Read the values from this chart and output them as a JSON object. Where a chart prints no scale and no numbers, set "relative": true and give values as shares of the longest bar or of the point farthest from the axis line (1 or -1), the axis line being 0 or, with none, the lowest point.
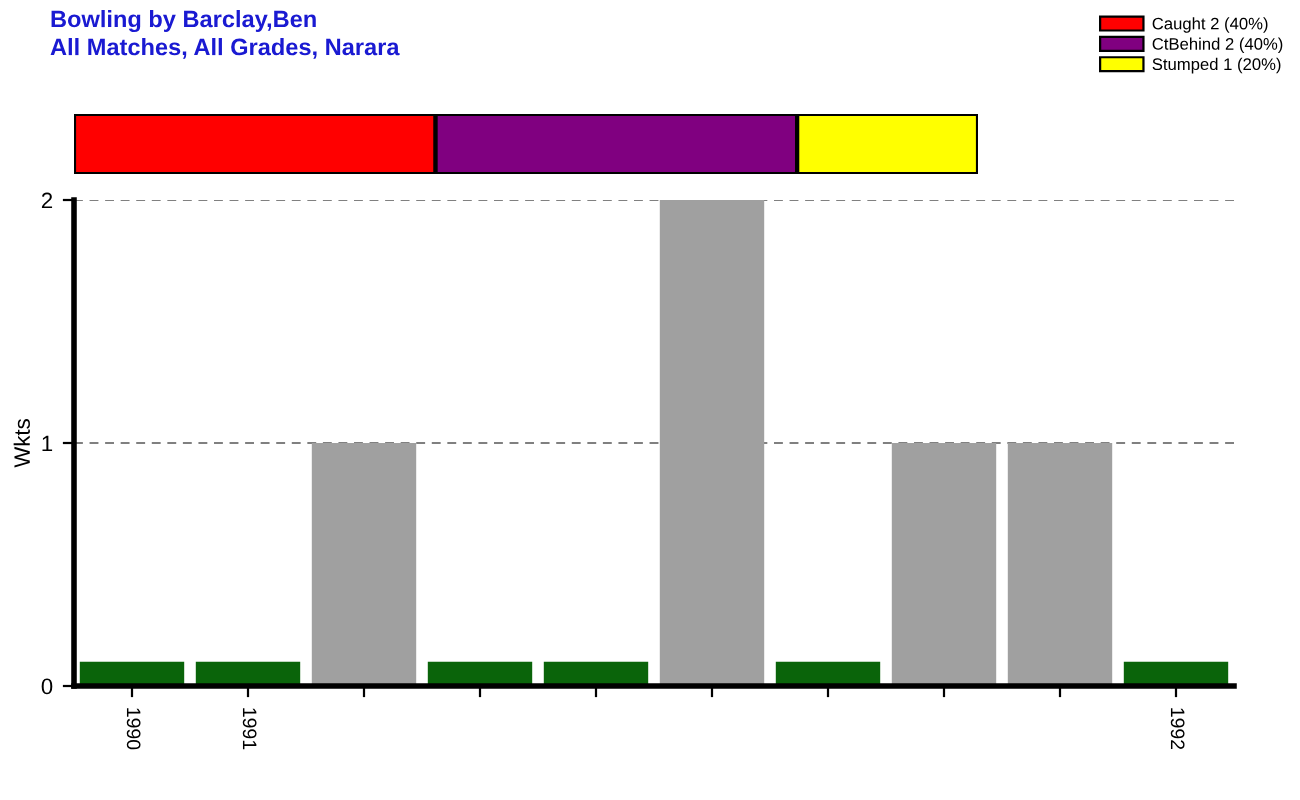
{
  "chart_data": [
    {
      "type": "bar",
      "title": "Bowling by Barclay,Ben",
      "subtitle": "All Matches, All Grades, Narara",
      "orientation": "horizontal",
      "stacked": true,
      "relative": true,
      "categories": [
        null
      ],
      "series": [
        {
          "name": "Caught 2 (40%)",
          "color": "#ff0000",
          "values": [
            0.4
          ]
        },
        {
          "name": "CtBehind 2 (40%)",
          "color": "#800080",
          "values": [
            0.4
          ]
        },
        {
          "name": "Stumped 1 (20%)",
          "color": "#ffff00",
          "values": [
            0.2
          ]
        }
      ],
      "legend": "top right"
    },
    {
      "type": "bar",
      "categories": [
        "1990",
        "1991",
        null,
        null,
        null,
        null,
        null,
        null,
        null,
        "1992"
      ],
      "values": [
        0.1,
        0.1,
        1,
        0.1,
        0.1,
        2,
        0.1,
        1,
        1,
        0.1
      ],
      "colors": [
        "#0a640a",
        "#0a640a",
        "#a0a0a0",
        "#0a640a",
        "#0a640a",
        "#a0a0a0",
        "#0a640a",
        "#a0a0a0",
        "#a0a0a0",
        "#0a640a"
      ],
      "ylabel": "Wkts",
      "ylim": [
        0,
        2
      ],
      "yticks": [
        0,
        1,
        2
      ],
      "grid": "y"
    }
  ]
}
